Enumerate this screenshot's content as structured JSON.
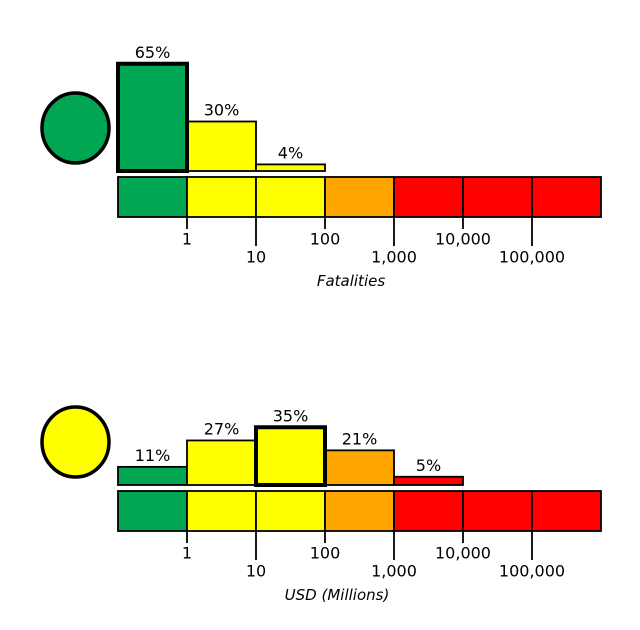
{
  "palette": {
    "green": "#00a651",
    "yellow": "#ffff00",
    "orange": "#ffa500",
    "red": "#ff0000",
    "outline": "#000000",
    "background": "#ffffff"
  },
  "chart_data": [
    {
      "type": "bar",
      "subtype": "log-binned-histogram",
      "xlabel": "Fatalities",
      "xscale": "log",
      "grid": false,
      "legend": false,
      "categories": [
        "<1",
        "1-10",
        "10-100",
        "100-1,000",
        "1,000-10,000",
        "10,000-100,000",
        ">100,000"
      ],
      "values": [
        65,
        30,
        4,
        0,
        0,
        0,
        0
      ],
      "bins": [
        {
          "label": "65%",
          "percent": 65,
          "color": "green"
        },
        {
          "label": "30%",
          "percent": 30,
          "color": "yellow"
        },
        {
          "label": "4%",
          "percent": 4,
          "color": "yellow"
        },
        {
          "label": "",
          "percent": 0,
          "color": "orange"
        },
        {
          "label": "",
          "percent": 0,
          "color": "red"
        },
        {
          "label": "",
          "percent": 0,
          "color": "red"
        },
        {
          "label": "",
          "percent": 0,
          "color": "red"
        }
      ],
      "highlighted_bin": 0,
      "indicator_color": "green",
      "x_tick_labels": [
        "1",
        "10",
        "100",
        "1,000",
        "10,000",
        "100,000"
      ],
      "scale_strip_colors": [
        "green",
        "yellow",
        "yellow",
        "orange",
        "red",
        "red",
        "red"
      ]
    },
    {
      "type": "bar",
      "subtype": "log-binned-histogram",
      "xlabel": "USD (Millions)",
      "xscale": "log",
      "grid": false,
      "legend": false,
      "categories": [
        "<1",
        "1-10",
        "10-100",
        "100-1,000",
        "1,000-10,000",
        "10,000-100,000",
        ">100,000"
      ],
      "values": [
        11,
        27,
        35,
        21,
        5,
        0,
        0
      ],
      "bins": [
        {
          "label": "11%",
          "percent": 11,
          "color": "green"
        },
        {
          "label": "27%",
          "percent": 27,
          "color": "yellow"
        },
        {
          "label": "35%",
          "percent": 35,
          "color": "yellow"
        },
        {
          "label": "21%",
          "percent": 21,
          "color": "orange"
        },
        {
          "label": "5%",
          "percent": 5,
          "color": "red"
        },
        {
          "label": "",
          "percent": 0,
          "color": "red"
        },
        {
          "label": "",
          "percent": 0,
          "color": "red"
        }
      ],
      "highlighted_bin": 2,
      "indicator_color": "yellow",
      "x_tick_labels": [
        "1",
        "10",
        "100",
        "1,000",
        "10,000",
        "100,000"
      ],
      "scale_strip_colors": [
        "green",
        "yellow",
        "yellow",
        "orange",
        "red",
        "red",
        "red"
      ]
    }
  ]
}
